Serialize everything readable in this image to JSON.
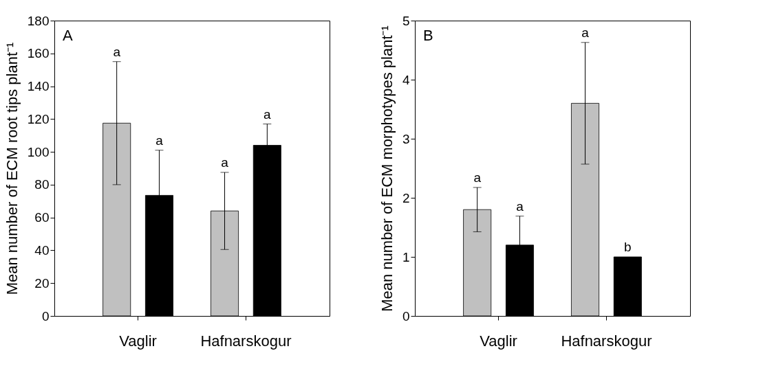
{
  "chart_data": [
    {
      "type": "bar",
      "categories": [
        "Vaglir",
        "Hafnarskogur"
      ],
      "ylabel": "Mean number of ECM root tips plant⁻¹",
      "ylim": [
        0,
        180
      ],
      "yticks": [
        0,
        20,
        40,
        60,
        80,
        100,
        120,
        140,
        160,
        180
      ],
      "grid": false,
      "series": [
        {
          "color": "#c0c0c0",
          "values": [
            117.5,
            64
          ],
          "errors": [
            37.5,
            23.5
          ]
        },
        {
          "color": "#000000",
          "values": [
            73.5,
            104
          ],
          "errors": [
            27.5,
            13
          ]
        }
      ],
      "annotations": [
        "A",
        "a",
        "a",
        "a",
        "a"
      ]
    },
    {
      "type": "bar",
      "categories": [
        "Vaglir",
        "Hafnarskogur"
      ],
      "ylabel": "Mean number of ECM morphotypes plant⁻¹",
      "ylim": [
        0,
        5
      ],
      "yticks": [
        0,
        1,
        2,
        3,
        4,
        5
      ],
      "grid": false,
      "series": [
        {
          "color": "#c0c0c0",
          "values": [
            1.8,
            3.6
          ],
          "errors": [
            0.375,
            1.03
          ]
        },
        {
          "color": "#000000",
          "values": [
            1.2,
            1.0
          ],
          "errors": [
            0.49,
            null
          ]
        }
      ],
      "annotations": [
        "B",
        "a",
        "a",
        "a",
        "b"
      ]
    }
  ]
}
